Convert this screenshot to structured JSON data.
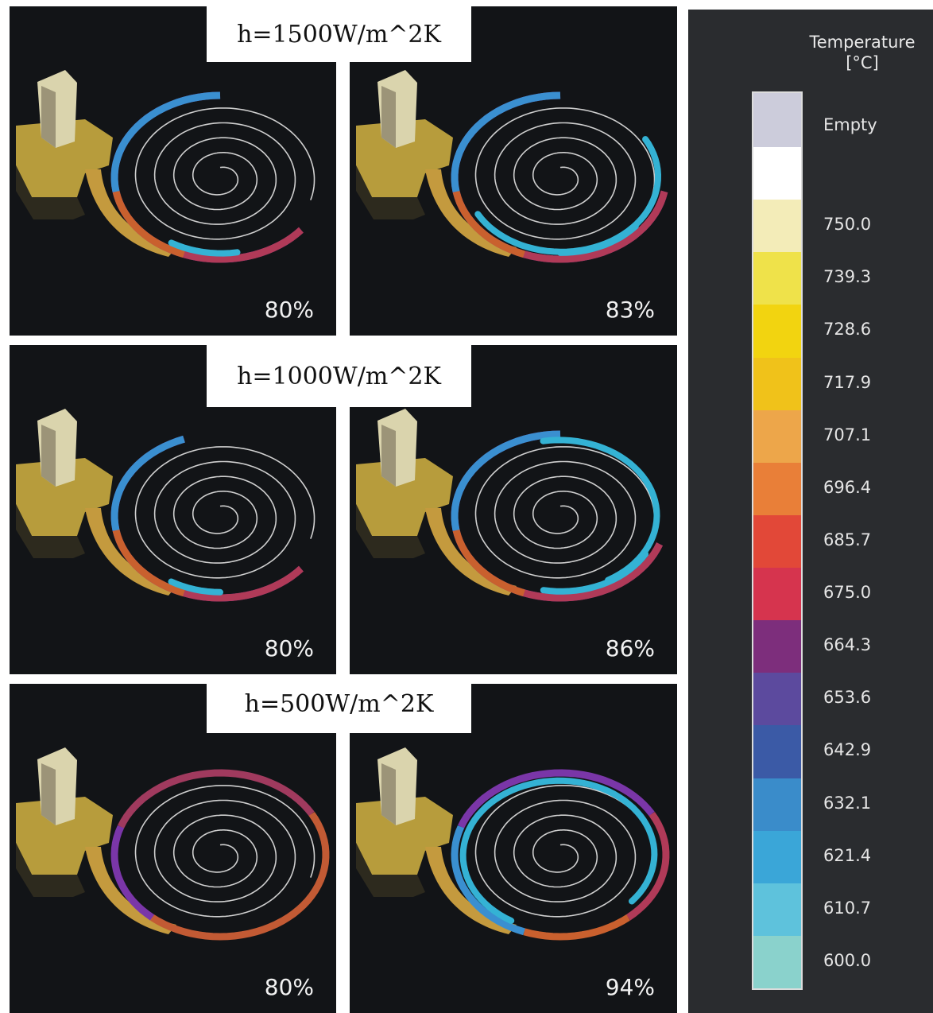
{
  "rows": [
    {
      "label": "h=1500W/m^2K",
      "panels": [
        {
          "percent": "80%",
          "ring": [
            [
              "#7a36a8",
              270,
              40
            ],
            [
              "#b03a58",
              40,
              110
            ],
            [
              "#c9602e",
              110,
              170
            ],
            [
              "#3a8fd0",
              170,
              270
            ]
          ],
          "cyan": [
            [
              80,
              120
            ]
          ]
        },
        {
          "percent": "83%",
          "ring": [
            [
              "#7a36a8",
              270,
              10
            ],
            [
              "#b03a58",
              10,
              110
            ],
            [
              "#c9602e",
              110,
              170
            ],
            [
              "#3a8fd0",
              170,
              270
            ]
          ],
          "cyan": [
            [
              330,
              510
            ],
            [
              40,
              90
            ]
          ]
        }
      ]
    },
    {
      "label": "h=1000W/m^2K",
      "panels": [
        {
          "percent": "80%",
          "ring": [
            [
              "#7a36a8",
              250,
              40
            ],
            [
              "#b03a58",
              40,
              110
            ],
            [
              "#c9602e",
              110,
              170
            ],
            [
              "#3a8fd0",
              170,
              250
            ]
          ],
          "cyan": [
            [
              90,
              120
            ]
          ]
        },
        {
          "percent": "86%",
          "ring": [
            [
              "#7a36a8",
              270,
              20
            ],
            [
              "#b03a58",
              20,
              110
            ],
            [
              "#c9602e",
              110,
              170
            ],
            [
              "#3a8fd0",
              170,
              270
            ]
          ],
          "cyan": [
            [
              260,
              420
            ],
            [
              30,
              100
            ]
          ]
        }
      ]
    },
    {
      "label": "h=500W/m^2K",
      "panels": [
        {
          "percent": "80%",
          "ring": [
            [
              "#a03a5e",
              200,
              330
            ],
            [
              "#c25a34",
              330,
              490
            ],
            [
              "#7a36a8",
              130,
              200
            ]
          ],
          "cyan": []
        },
        {
          "percent": "94%",
          "ring": [
            [
              "#7a36a8",
              200,
              330
            ],
            [
              "#b03a58",
              330,
              410
            ],
            [
              "#c9602e",
              410,
              470
            ],
            [
              "#3a8fd0",
              110,
              200
            ]
          ],
          "cyan": [
            [
              120,
              400
            ]
          ]
        }
      ]
    }
  ],
  "legend": {
    "title": "Temperature",
    "unit": "[°C]",
    "empty_label": "Empty",
    "empty_color": "#ccccdb",
    "swatches": [
      "#ffffff",
      "#f3ecb8",
      "#efe24a",
      "#f2d410",
      "#f0c21a",
      "#eda64a",
      "#e97f38",
      "#e24838",
      "#d6344e",
      "#7d2e7c",
      "#5c4a9e",
      "#3b5aa6",
      "#3a8cca",
      "#3aa6d8",
      "#5ec2dc",
      "#8ad2cc"
    ],
    "ticks": [
      "750.0",
      "739.3",
      "728.6",
      "717.9",
      "707.1",
      "696.4",
      "685.7",
      "675.0",
      "664.3",
      "653.6",
      "642.9",
      "632.1",
      "621.4",
      "610.7",
      "600.0"
    ]
  }
}
